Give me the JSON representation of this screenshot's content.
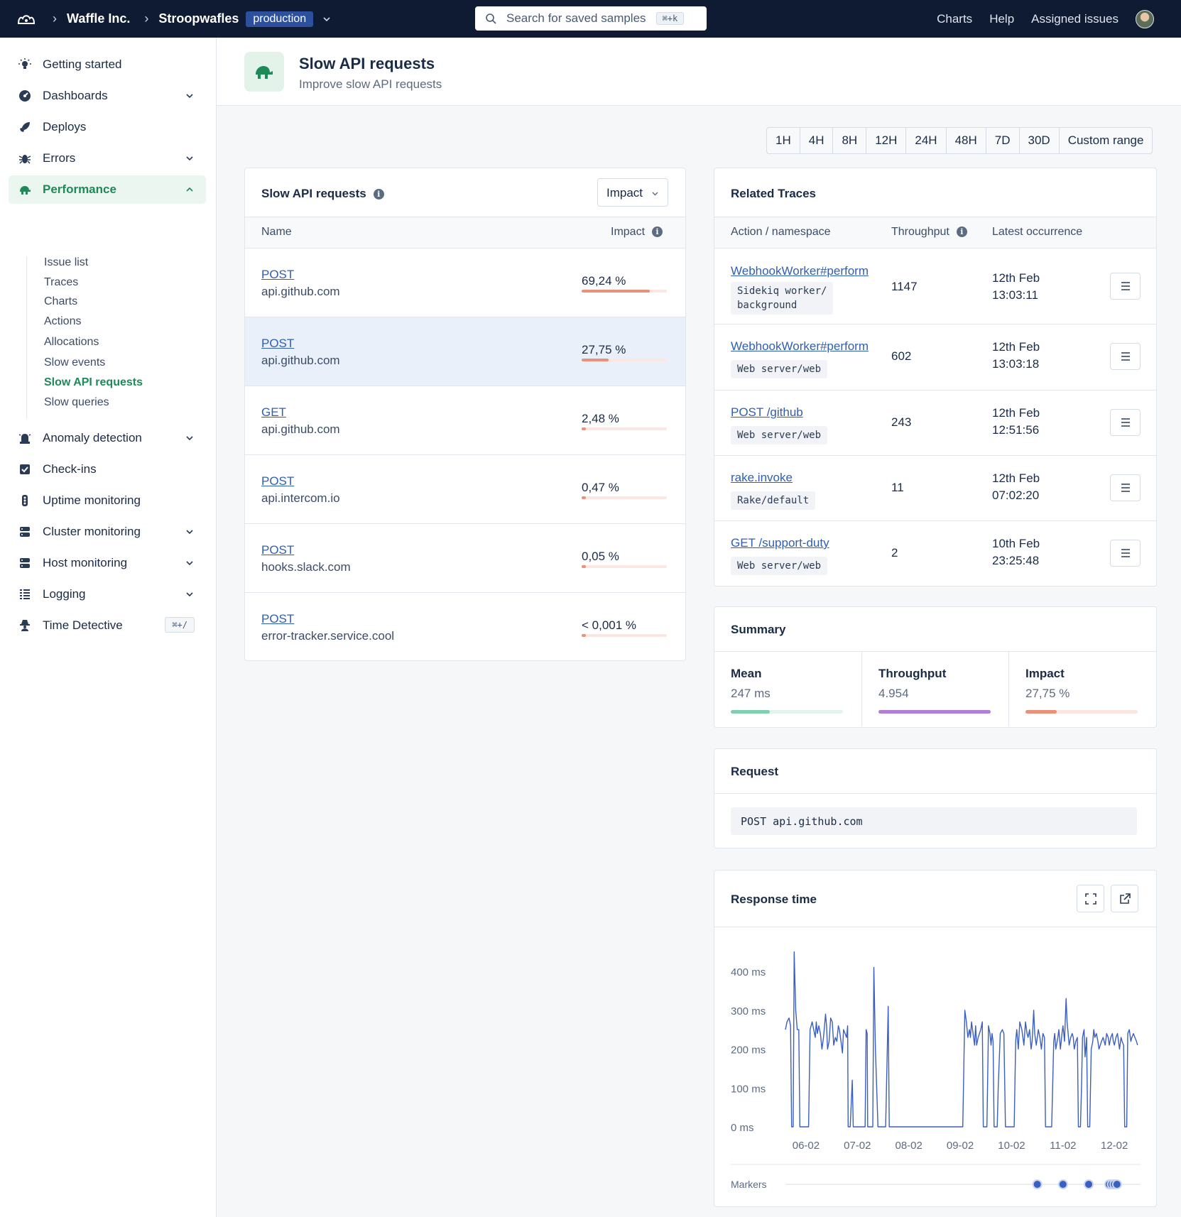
{
  "topbar": {
    "org": "Waffle Inc.",
    "app": "Stroopwafles",
    "environment": "production",
    "search_placeholder": "Search for saved samples",
    "search_shortcut": "⌘+k",
    "nav": [
      "Charts",
      "Help",
      "Assigned issues"
    ]
  },
  "sidebar": {
    "items": [
      {
        "label": "Getting started",
        "icon": "lightbulb-icon"
      },
      {
        "label": "Dashboards",
        "icon": "dashboard-icon"
      },
      {
        "label": "Deploys",
        "icon": "rocket-icon"
      },
      {
        "label": "Errors",
        "icon": "bug-icon"
      },
      {
        "label": "Performance",
        "icon": "turtle-icon"
      },
      {
        "label": "Anomaly detection",
        "icon": "alarm-icon"
      },
      {
        "label": "Check-ins",
        "icon": "checkbox-icon"
      },
      {
        "label": "Uptime monitoring",
        "icon": "traffic-light-icon"
      },
      {
        "label": "Cluster monitoring",
        "icon": "server-icon"
      },
      {
        "label": "Host monitoring",
        "icon": "host-icon"
      },
      {
        "label": "Logging",
        "icon": "list-icon"
      },
      {
        "label": "Time Detective",
        "icon": "detective-icon"
      }
    ],
    "performance_sub": [
      "Issue list",
      "Traces",
      "Charts",
      "Actions",
      "Allocations",
      "Slow events",
      "Slow API requests",
      "Slow queries"
    ],
    "time_detective_shortcut": "⌘+/"
  },
  "page": {
    "title": "Slow API requests",
    "subtitle": "Improve slow API requests"
  },
  "time_ranges": [
    "1H",
    "4H",
    "8H",
    "12H",
    "24H",
    "48H",
    "7D",
    "30D",
    "Custom range"
  ],
  "requests_card": {
    "title": "Slow API requests",
    "sort": "Impact",
    "col_name": "Name",
    "col_impact": "Impact",
    "rows": [
      {
        "method": "POST",
        "host": "api.github.com",
        "impact": "69,24 %",
        "pct": 69.24
      },
      {
        "method": "POST",
        "host": "api.github.com",
        "impact": "27,75 %",
        "pct": 27.75
      },
      {
        "method": "GET",
        "host": "api.github.com",
        "impact": "2,48 %",
        "pct": 2.48
      },
      {
        "method": "POST",
        "host": "api.intercom.io",
        "impact": "0,47 %",
        "pct": 0.47
      },
      {
        "method": "POST",
        "host": "hooks.slack.com",
        "impact": "0,05 %",
        "pct": 0.05
      },
      {
        "method": "POST",
        "host": "error-tracker.service.cool",
        "impact": "< 0,001 %",
        "pct": 0.001
      }
    ]
  },
  "traces_card": {
    "title": "Related Traces",
    "col_action": "Action / namespace",
    "col_throughput": "Throughput",
    "col_latest": "Latest occurrence",
    "rows": [
      {
        "action": "WebhookWorker#perform",
        "namespace_l1": "Sidekiq worker/",
        "namespace_l2": "background",
        "throughput": "1147",
        "date": "12th Feb",
        "time": "13:03:11"
      },
      {
        "action": "WebhookWorker#perform",
        "namespace_l1": "Web server/web",
        "namespace_l2": "",
        "throughput": "602",
        "date": "12th Feb",
        "time": "13:03:18"
      },
      {
        "action": "POST /github",
        "namespace_l1": "Web server/web",
        "namespace_l2": "",
        "throughput": "243",
        "date": "12th Feb",
        "time": "12:51:56"
      },
      {
        "action": "rake.invoke",
        "namespace_l1": "Rake/default",
        "namespace_l2": "",
        "throughput": "11",
        "date": "12th Feb",
        "time": "07:02:20"
      },
      {
        "action": "GET /support-duty",
        "namespace_l1": "Web server/web",
        "namespace_l2": "",
        "throughput": "2",
        "date": "10th Feb",
        "time": "23:25:48"
      }
    ]
  },
  "summary_card": {
    "title": "Summary",
    "cells": [
      {
        "label": "Mean",
        "value": "247 ms",
        "fraction": 0.35,
        "color": "#7fcfae",
        "track": "#e3f4ec"
      },
      {
        "label": "Throughput",
        "value": "4.954",
        "fraction": 1.0,
        "color": "#b07dd8",
        "track": "#efe5f8"
      },
      {
        "label": "Impact",
        "value": "27,75 %",
        "fraction": 0.28,
        "color": "#e9917a",
        "track": "#fbe6e1"
      }
    ]
  },
  "request_card": {
    "title": "Request",
    "code": "POST api.github.com"
  },
  "response_card": {
    "title": "Response time",
    "markers_label": "Markers"
  },
  "chart_data": {
    "type": "line",
    "title": "Response time",
    "y_ticks": [
      "0 ms",
      "100 ms",
      "200 ms",
      "300 ms",
      "400 ms"
    ],
    "x_ticks": [
      "06-02",
      "07-02",
      "08-02",
      "09-02",
      "10-02",
      "11-02",
      "12-02"
    ],
    "ylim": [
      0,
      450
    ],
    "xlim": [
      5.6,
      12.55
    ],
    "color": "#3b5fc0",
    "series": [
      {
        "values": [
          [
            5.6,
            250
          ],
          [
            5.63,
            270
          ],
          [
            5.67,
            280
          ],
          [
            5.7,
            260
          ],
          [
            5.72,
            0
          ],
          [
            5.75,
            0
          ],
          [
            5.77,
            450
          ],
          [
            5.8,
            300
          ],
          [
            5.83,
            250
          ],
          [
            5.86,
            250
          ],
          [
            5.88,
            0
          ],
          [
            5.93,
            0
          ],
          [
            6.05,
            0
          ],
          [
            6.08,
            250
          ],
          [
            6.12,
            270
          ],
          [
            6.15,
            250
          ],
          [
            6.18,
            230
          ],
          [
            6.2,
            270
          ],
          [
            6.22,
            240
          ],
          [
            6.25,
            260
          ],
          [
            6.28,
            240
          ],
          [
            6.31,
            200
          ],
          [
            6.34,
            230
          ],
          [
            6.38,
            290
          ],
          [
            6.4,
            260
          ],
          [
            6.42,
            200
          ],
          [
            6.45,
            220
          ],
          [
            6.48,
            280
          ],
          [
            6.51,
            270
          ],
          [
            6.54,
            210
          ],
          [
            6.57,
            230
          ],
          [
            6.6,
            220
          ],
          [
            6.63,
            260
          ],
          [
            6.65,
            250
          ],
          [
            6.68,
            220
          ],
          [
            6.71,
            190
          ],
          [
            6.73,
            250
          ],
          [
            6.76,
            240
          ],
          [
            6.79,
            230
          ],
          [
            6.81,
            260
          ],
          [
            6.82,
            0
          ],
          [
            6.86,
            0
          ],
          [
            6.9,
            120
          ],
          [
            6.92,
            0
          ],
          [
            7.0,
            0
          ],
          [
            7.05,
            0
          ],
          [
            7.1,
            0
          ],
          [
            7.15,
            0
          ],
          [
            7.17,
            250
          ],
          [
            7.19,
            240
          ],
          [
            7.2,
            0
          ],
          [
            7.25,
            0
          ],
          [
            7.3,
            0
          ],
          [
            7.32,
            410
          ],
          [
            7.35,
            200
          ],
          [
            7.4,
            0
          ],
          [
            7.45,
            0
          ],
          [
            7.5,
            0
          ],
          [
            7.55,
            0
          ],
          [
            7.6,
            310
          ],
          [
            7.62,
            0
          ],
          [
            8.0,
            0
          ],
          [
            8.5,
            0
          ],
          [
            9.0,
            0
          ],
          [
            9.05,
            0
          ],
          [
            9.09,
            300
          ],
          [
            9.12,
            270
          ],
          [
            9.15,
            230
          ],
          [
            9.18,
            250
          ],
          [
            9.2,
            230
          ],
          [
            9.22,
            270
          ],
          [
            9.25,
            240
          ],
          [
            9.28,
            210
          ],
          [
            9.3,
            260
          ],
          [
            9.32,
            210
          ],
          [
            9.35,
            230
          ],
          [
            9.4,
            250
          ],
          [
            9.43,
            270
          ],
          [
            9.45,
            0
          ],
          [
            9.5,
            0
          ],
          [
            9.52,
            0
          ],
          [
            9.55,
            260
          ],
          [
            9.58,
            240
          ],
          [
            9.6,
            210
          ],
          [
            9.62,
            240
          ],
          [
            9.64,
            220
          ],
          [
            9.66,
            0
          ],
          [
            9.7,
            0
          ],
          [
            9.72,
            0
          ],
          [
            9.74,
            100
          ],
          [
            9.78,
            240
          ],
          [
            9.82,
            250
          ],
          [
            9.85,
            240
          ],
          [
            9.88,
            0
          ],
          [
            9.92,
            0
          ],
          [
            10.05,
            0
          ],
          [
            10.08,
            220
          ],
          [
            10.1,
            250
          ],
          [
            10.13,
            200
          ],
          [
            10.16,
            270
          ],
          [
            10.2,
            250
          ],
          [
            10.24,
            210
          ],
          [
            10.27,
            270
          ],
          [
            10.3,
            240
          ],
          [
            10.32,
            230
          ],
          [
            10.35,
            250
          ],
          [
            10.38,
            200
          ],
          [
            10.4,
            220
          ],
          [
            10.43,
            300
          ],
          [
            10.45,
            240
          ],
          [
            10.48,
            210
          ],
          [
            10.52,
            250
          ],
          [
            10.55,
            230
          ],
          [
            10.58,
            200
          ],
          [
            10.61,
            240
          ],
          [
            10.64,
            230
          ],
          [
            10.66,
            0
          ],
          [
            10.72,
            0
          ],
          [
            10.74,
            0
          ],
          [
            10.78,
            0
          ],
          [
            10.82,
            220
          ],
          [
            10.84,
            240
          ],
          [
            10.86,
            200
          ],
          [
            10.9,
            230
          ],
          [
            10.92,
            250
          ],
          [
            10.95,
            200
          ],
          [
            10.98,
            240
          ],
          [
            11.0,
            260
          ],
          [
            11.03,
            220
          ],
          [
            11.06,
            330
          ],
          [
            11.08,
            270
          ],
          [
            11.1,
            240
          ],
          [
            11.12,
            210
          ],
          [
            11.15,
            230
          ],
          [
            11.18,
            240
          ],
          [
            11.2,
            230
          ],
          [
            11.22,
            200
          ],
          [
            11.25,
            220
          ],
          [
            11.28,
            230
          ],
          [
            11.3,
            0
          ],
          [
            11.34,
            0
          ],
          [
            11.36,
            100
          ],
          [
            11.38,
            230
          ],
          [
            11.41,
            250
          ],
          [
            11.43,
            180
          ],
          [
            11.46,
            230
          ],
          [
            11.48,
            0
          ],
          [
            11.52,
            0
          ],
          [
            11.55,
            200
          ],
          [
            11.58,
            220
          ],
          [
            11.6,
            250
          ],
          [
            11.62,
            230
          ],
          [
            11.65,
            240
          ],
          [
            11.68,
            220
          ],
          [
            11.7,
            200
          ],
          [
            11.75,
            220
          ],
          [
            11.78,
            230
          ],
          [
            11.82,
            210
          ],
          [
            11.85,
            240
          ],
          [
            11.88,
            230
          ],
          [
            11.9,
            210
          ],
          [
            11.93,
            230
          ],
          [
            11.96,
            240
          ],
          [
            11.98,
            220
          ],
          [
            12.0,
            210
          ],
          [
            12.03,
            230
          ],
          [
            12.06,
            240
          ],
          [
            12.08,
            220
          ],
          [
            12.1,
            200
          ],
          [
            12.13,
            230
          ],
          [
            12.15,
            220
          ],
          [
            12.18,
            210
          ],
          [
            12.2,
            0
          ],
          [
            12.24,
            0
          ],
          [
            12.26,
            240
          ],
          [
            12.29,
            250
          ],
          [
            12.32,
            220
          ],
          [
            12.34,
            230
          ],
          [
            12.37,
            240
          ],
          [
            12.4,
            230
          ],
          [
            12.43,
            220
          ],
          [
            12.45,
            210
          ]
        ]
      }
    ],
    "markers": [
      10.5,
      11.0,
      11.5,
      11.9,
      11.95,
      12.0,
      12.05
    ]
  }
}
